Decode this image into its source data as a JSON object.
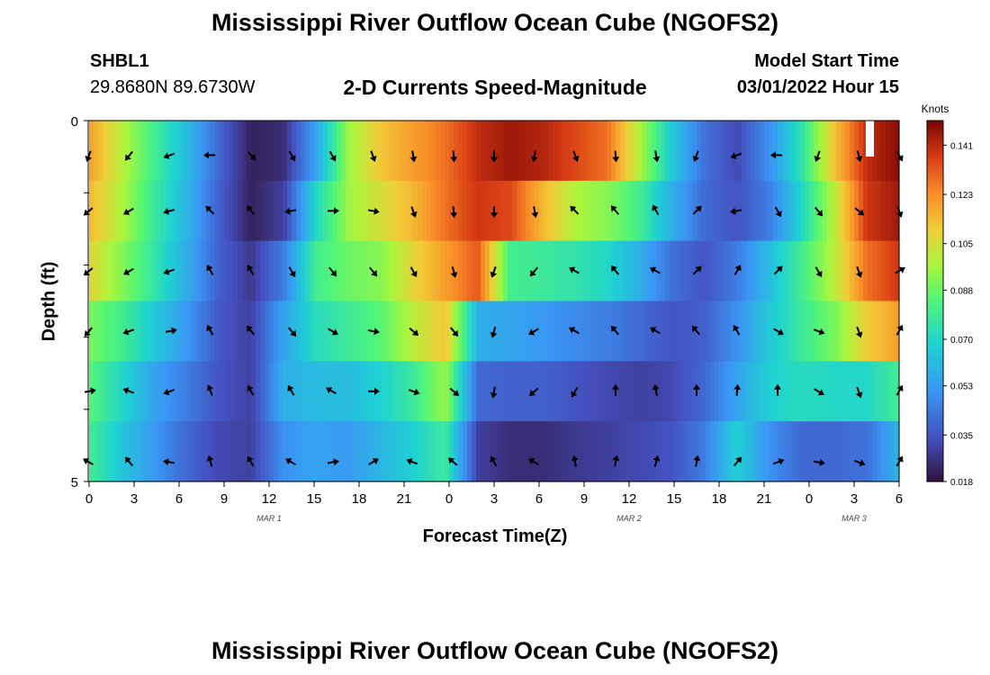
{
  "header": {
    "title": "Mississippi River Outflow Ocean Cube (NGOFS2)",
    "station": "SHBL1",
    "coordinates": "29.8680N  89.6730W",
    "subtitle": "2-D Currents Speed-Magnitude",
    "model_start_label": "Model Start Time",
    "model_start_value": "03/01/2022 Hour 15"
  },
  "footer": {
    "title": "Mississippi River Outflow Ocean Cube (NGOFS2)"
  },
  "chart_data": {
    "type": "heatmap",
    "title": "2-D Currents Speed-Magnitude",
    "xlabel": "Forecast Time(Z)",
    "ylabel": "Depth (ft)",
    "x_tick_labels": [
      "0",
      "3",
      "6",
      "9",
      "12",
      "15",
      "18",
      "21",
      "0",
      "3",
      "6",
      "9",
      "12",
      "15",
      "18",
      "21",
      "0",
      "3",
      "6"
    ],
    "x_range_hours": [
      0,
      54
    ],
    "date_labels": [
      {
        "label": "MAR 1",
        "hour": 12
      },
      {
        "label": "MAR 2",
        "hour": 36
      },
      {
        "label": "MAR 3",
        "hour": 51
      }
    ],
    "y_tick_labels": [
      "0",
      "5"
    ],
    "y_range": [
      0,
      5
    ],
    "colorbar": {
      "label": "Knots",
      "ticks": [
        "0.141",
        "0.123",
        "0.105",
        "0.088",
        "0.070",
        "0.053",
        "0.035",
        "0.018"
      ],
      "range": [
        0.018,
        0.15
      ],
      "colormap": "turbo"
    },
    "speed_knots": [
      [
        0.12,
        0.1,
        0.08,
        0.062,
        0.04,
        0.022,
        0.025,
        0.055,
        0.095,
        0.112,
        0.12,
        0.128,
        0.14,
        0.145,
        0.142,
        0.135,
        0.128,
        0.098,
        0.065,
        0.042,
        0.032,
        0.05,
        0.075,
        0.112,
        0.14,
        0.148
      ],
      [
        0.115,
        0.098,
        0.078,
        0.06,
        0.038,
        0.022,
        0.03,
        0.07,
        0.095,
        0.105,
        0.115,
        0.128,
        0.138,
        0.135,
        0.115,
        0.098,
        0.092,
        0.08,
        0.058,
        0.04,
        0.035,
        0.045,
        0.07,
        0.1,
        0.138,
        0.145
      ],
      [
        0.108,
        0.092,
        0.076,
        0.058,
        0.038,
        0.028,
        0.045,
        0.08,
        0.088,
        0.092,
        0.108,
        0.12,
        0.132,
        0.08,
        0.078,
        0.075,
        0.07,
        0.058,
        0.042,
        0.035,
        0.045,
        0.062,
        0.08,
        0.1,
        0.128,
        0.138
      ],
      [
        0.09,
        0.08,
        0.066,
        0.052,
        0.036,
        0.03,
        0.055,
        0.072,
        0.078,
        0.085,
        0.1,
        0.112,
        0.058,
        0.055,
        0.052,
        0.048,
        0.045,
        0.04,
        0.035,
        0.038,
        0.05,
        0.065,
        0.078,
        0.09,
        0.11,
        0.12
      ],
      [
        0.085,
        0.07,
        0.055,
        0.045,
        0.035,
        0.03,
        0.058,
        0.062,
        0.062,
        0.068,
        0.078,
        0.095,
        0.04,
        0.038,
        0.038,
        0.035,
        0.032,
        0.03,
        0.032,
        0.04,
        0.055,
        0.068,
        0.072,
        0.07,
        0.07,
        0.08
      ],
      [
        0.08,
        0.065,
        0.052,
        0.04,
        0.032,
        0.03,
        0.05,
        0.055,
        0.052,
        0.06,
        0.068,
        0.078,
        0.03,
        0.025,
        0.025,
        0.028,
        0.03,
        0.032,
        0.035,
        0.045,
        0.068,
        0.05,
        0.04,
        0.04,
        0.042,
        0.06
      ]
    ],
    "direction_deg": [
      [
        200,
        220,
        250,
        270,
        135,
        150,
        150,
        160,
        170,
        175,
        180,
        190,
        160,
        175,
        170,
        200,
        250,
        270,
        200,
        165,
        150
      ],
      [
        230,
        240,
        255,
        315,
        320,
        260,
        90,
        100,
        160,
        175,
        180,
        170,
        315,
        320,
        330,
        45,
        260,
        150,
        140,
        130,
        160
      ],
      [
        230,
        240,
        250,
        330,
        330,
        150,
        140,
        140,
        150,
        165,
        200,
        220,
        300,
        320,
        300,
        45,
        30,
        45,
        150,
        160,
        60
      ],
      [
        220,
        250,
        80,
        330,
        320,
        140,
        120,
        100,
        130,
        140,
        195,
        240,
        300,
        320,
        300,
        320,
        330,
        120,
        110,
        160,
        30
      ],
      [
        80,
        290,
        250,
        340,
        330,
        330,
        300,
        90,
        110,
        130,
        190,
        230,
        210,
        0,
        350,
        0,
        5,
        0,
        120,
        160,
        30
      ],
      [
        300,
        320,
        280,
        345,
        330,
        300,
        80,
        60,
        290,
        310,
        330,
        300,
        350,
        10,
        15,
        10,
        40,
        70,
        100,
        110,
        30
      ]
    ]
  }
}
